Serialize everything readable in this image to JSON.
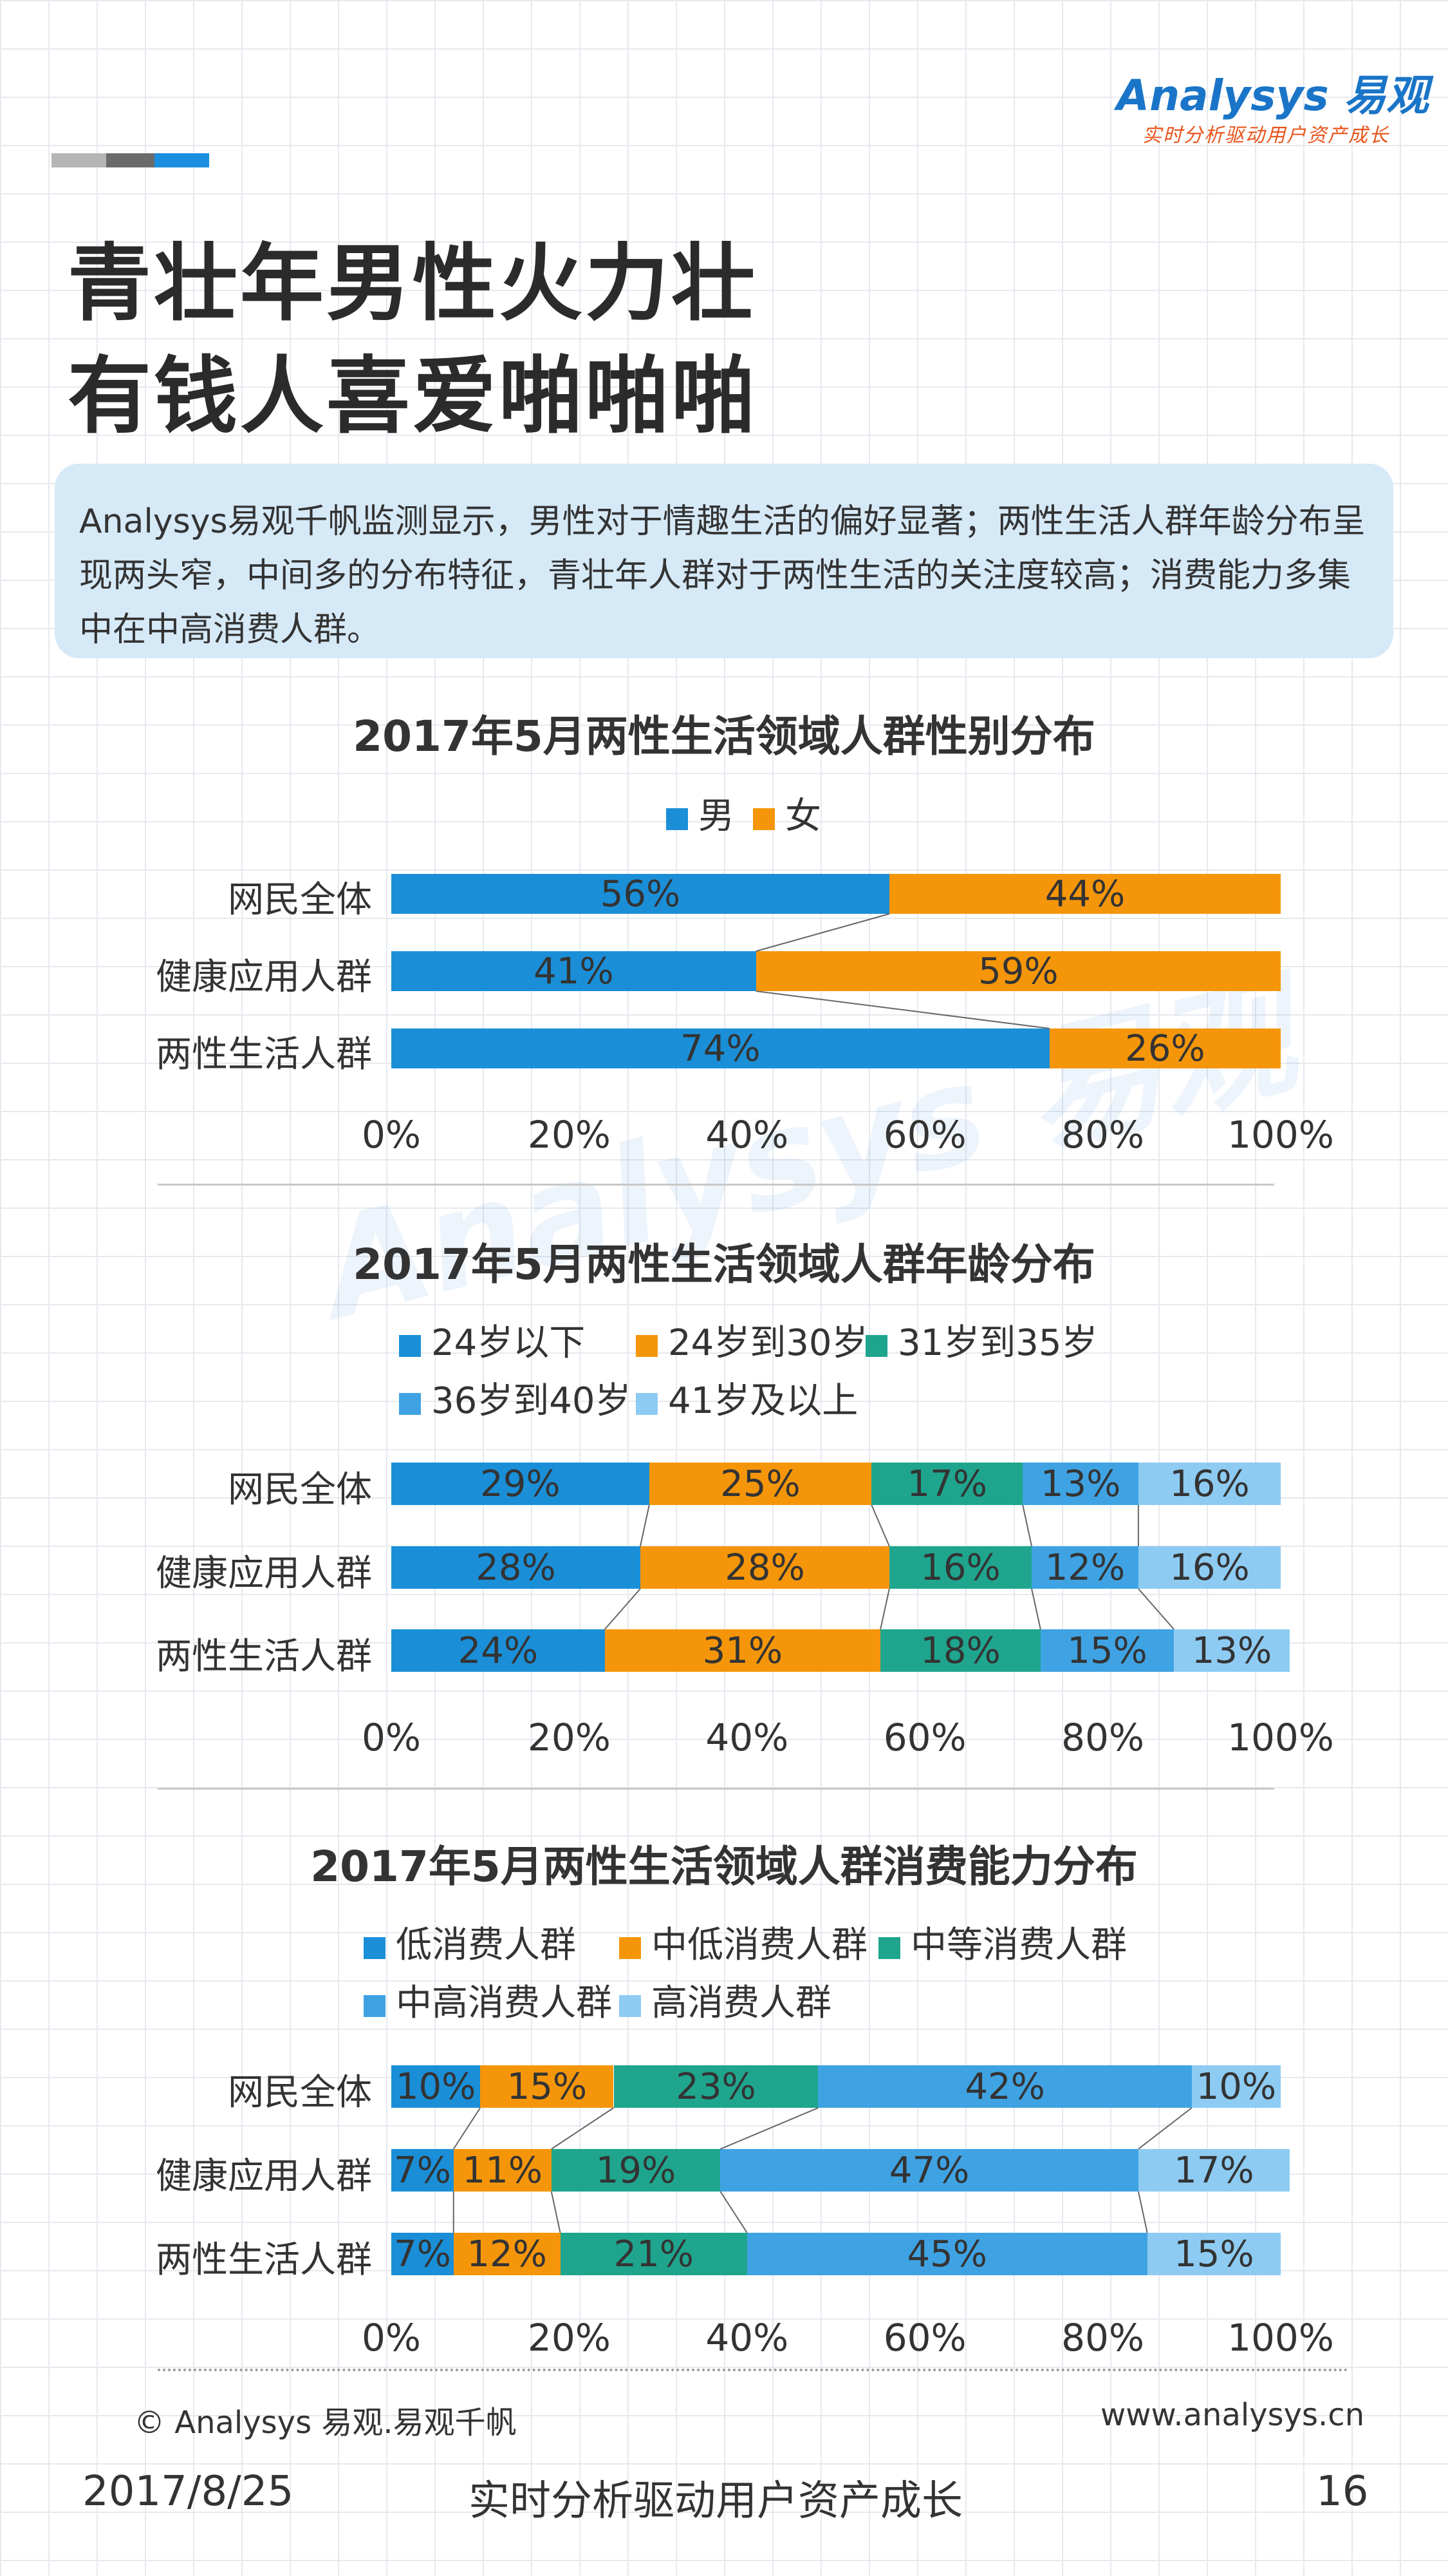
{
  "brand": {
    "logo_text": "Analysys 易观",
    "tagline": "实时分析驱动用户资产成长",
    "deco_colors": [
      "#b5b5b5",
      "#6b6b6b",
      "#1a8fe0"
    ]
  },
  "headline": {
    "line1": "青壮年男性火力壮",
    "line2": "有钱人喜爱啪啪啪"
  },
  "summary": "Analysys易观千帆监测显示，男性对于情趣生活的偏好显著；两性生活人群年龄分布呈现两头窄，中间多的分布特征，青壮年人群对于两性生活的关注度较高；消费能力多集中在中高消费人群。",
  "chart_data": [
    {
      "type": "bar",
      "stacked": true,
      "orientation": "horizontal",
      "title": "2017年5月两性生活领域人群性别分布",
      "categories": [
        "网民全体",
        "健康应用人群",
        "两性生活人群"
      ],
      "series": [
        {
          "name": "男",
          "color": "#1a8fd8",
          "values": [
            56,
            41,
            74
          ]
        },
        {
          "name": "女",
          "color": "#f5960a",
          "values": [
            44,
            59,
            26
          ]
        }
      ],
      "xlim": [
        0,
        100
      ],
      "ticks": [
        "0%",
        "20%",
        "40%",
        "60%",
        "80%",
        "100%"
      ],
      "legend": "top"
    },
    {
      "type": "bar",
      "stacked": true,
      "orientation": "horizontal",
      "title": "2017年5月两性生活领域人群年龄分布",
      "categories": [
        "网民全体",
        "健康应用人群",
        "两性生活人群"
      ],
      "series": [
        {
          "name": "24岁以下",
          "color": "#1a8fd8",
          "values": [
            29,
            28,
            24
          ]
        },
        {
          "name": "24岁到30岁",
          "color": "#f5960a",
          "values": [
            25,
            28,
            31
          ]
        },
        {
          "name": "31岁到35岁",
          "color": "#1fa58e",
          "values": [
            17,
            16,
            18
          ]
        },
        {
          "name": "36岁到40岁",
          "color": "#3fa3e3",
          "values": [
            13,
            12,
            15
          ]
        },
        {
          "name": "41岁及以上",
          "color": "#8ecbf2",
          "values": [
            16,
            16,
            13
          ]
        }
      ],
      "xlim": [
        0,
        100
      ],
      "ticks": [
        "0%",
        "20%",
        "40%",
        "60%",
        "80%",
        "100%"
      ],
      "legend": "top"
    },
    {
      "type": "bar",
      "stacked": true,
      "orientation": "horizontal",
      "title": "2017年5月两性生活领域人群消费能力分布",
      "categories": [
        "网民全体",
        "健康应用人群",
        "两性生活人群"
      ],
      "series": [
        {
          "name": "低消费人群",
          "color": "#1a8fd8",
          "values": [
            10,
            7,
            7
          ]
        },
        {
          "name": "中低消费人群",
          "color": "#f5960a",
          "values": [
            15,
            11,
            12
          ]
        },
        {
          "name": "中等消费人群",
          "color": "#1fa58e",
          "values": [
            23,
            19,
            21
          ]
        },
        {
          "name": "中高消费人群",
          "color": "#3fa3e3",
          "values": [
            42,
            47,
            45
          ]
        },
        {
          "name": "高消费人群",
          "color": "#8ecbf2",
          "values": [
            10,
            17,
            15
          ]
        }
      ],
      "xlim": [
        0,
        100
      ],
      "ticks": [
        "0%",
        "20%",
        "40%",
        "60%",
        "80%",
        "100%"
      ],
      "legend": "top"
    }
  ],
  "footer": {
    "copyright": "© Analysys 易观.易观千帆",
    "website": "www.analysys.cn",
    "date": "2017/8/25",
    "slogan": "实时分析驱动用户资产成长",
    "page_number": "16"
  }
}
